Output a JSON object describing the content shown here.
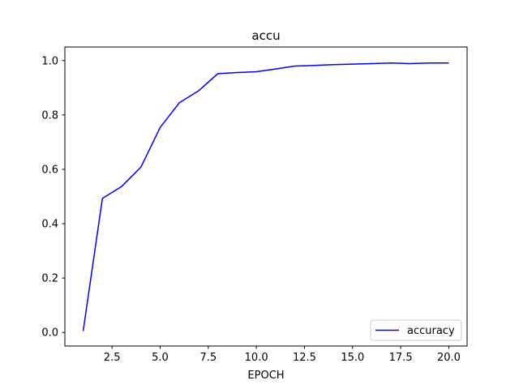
{
  "chart_data": {
    "type": "line",
    "title": "accu",
    "xlabel": "EPOCH",
    "ylabel": "",
    "xlim": [
      0.05,
      20.95
    ],
    "ylim": [
      -0.05,
      1.05
    ],
    "xticks": [
      2.5,
      5.0,
      7.5,
      10.0,
      12.5,
      15.0,
      17.5,
      20.0
    ],
    "xtick_labels": [
      "2.5",
      "5.0",
      "7.5",
      "10.0",
      "12.5",
      "15.0",
      "17.5",
      "20.0"
    ],
    "yticks": [
      0.0,
      0.2,
      0.4,
      0.6,
      0.8,
      1.0
    ],
    "ytick_labels": [
      "0.0",
      "0.2",
      "0.4",
      "0.6",
      "0.8",
      "1.0"
    ],
    "grid": false,
    "legend_position": "lower-right",
    "series": [
      {
        "name": "accuracy",
        "color": "#0000ff",
        "x": [
          1,
          2,
          3,
          4,
          5,
          6,
          7,
          8,
          9,
          10,
          11,
          12,
          13,
          14,
          15,
          16,
          17,
          18,
          19,
          20
        ],
        "y": [
          0.005,
          0.493,
          0.537,
          0.608,
          0.754,
          0.845,
          0.889,
          0.952,
          0.956,
          0.959,
          0.969,
          0.98,
          0.982,
          0.985,
          0.987,
          0.989,
          0.991,
          0.989,
          0.991,
          0.991
        ]
      }
    ]
  }
}
